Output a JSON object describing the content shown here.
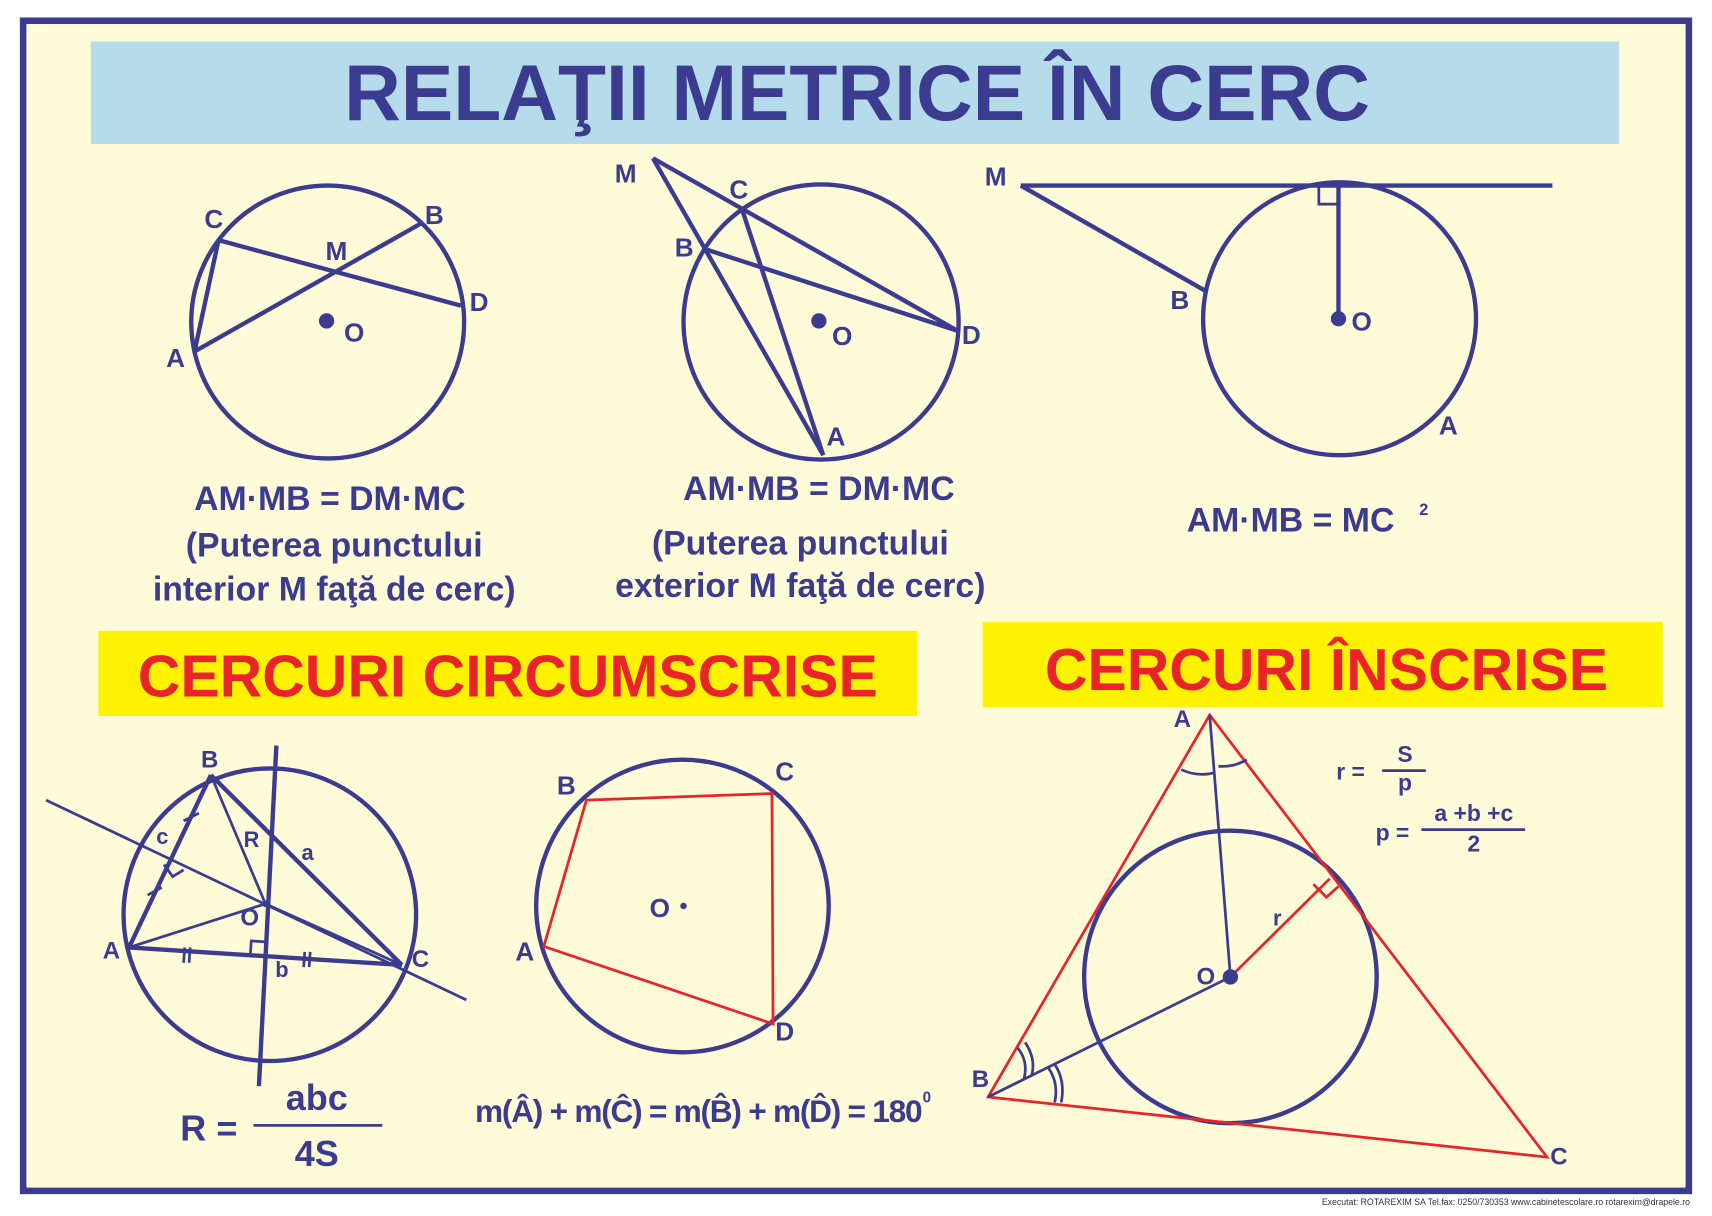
{
  "title": "RELAŢII METRICE ÎN CERC",
  "colors": {
    "background": "#fffbd9",
    "frame": "#3b3b8f",
    "title_bar": "#b6dcec",
    "circle_blue": "#8fd4f5",
    "circle_orange": "#fdd0a0",
    "circle_gray": "#e4e4ea",
    "banner": "#fff200",
    "accent_red": "#e8242a"
  },
  "fig1": {
    "labels": [
      "C",
      "B",
      "M",
      "D",
      "O",
      "A"
    ],
    "formula": "AM·MB = DM·MC",
    "caption1": "(Puterea punctului",
    "caption2": "interior M faţă de cerc)"
  },
  "fig2": {
    "labels": [
      "M",
      "C",
      "B",
      "O",
      "D",
      "A"
    ],
    "formula": "AM·MB = DM·MC",
    "caption1": "(Puterea punctului",
    "caption2": "exterior M faţă de cerc)"
  },
  "fig3": {
    "labels": [
      "M",
      "B",
      "O",
      "A"
    ],
    "formula": "AM·MB = MC",
    "exponent": "2"
  },
  "section_circumscribed": "CERCURI CIRCUMSCRISE",
  "section_inscribed": "CERCURI  ÎNSCRISE",
  "fig4": {
    "labels": [
      "B",
      "A",
      "C",
      "O",
      "c",
      "a",
      "R",
      "b"
    ],
    "formula_lhs": "R =",
    "numerator": "abc",
    "denominator": "4S"
  },
  "fig5": {
    "labels": [
      "B",
      "C",
      "A",
      "D",
      "O"
    ],
    "formula": "m(Â) + m(Ĉ) = m(B̂) + m(D̂) = 180",
    "exponent": "0"
  },
  "fig6": {
    "labels": [
      "A",
      "B",
      "C",
      "O",
      "r"
    ],
    "r_lhs": "r =",
    "r_num": "S",
    "r_den": "p",
    "p_lhs": "p =",
    "p_num": "a +b +c",
    "p_den": "2"
  },
  "footer": "Executat: ROTAREXIM SA  Tel.fax: 0250/730353   www.cabinetescolare.ro   rotarexim@drapele.ro"
}
